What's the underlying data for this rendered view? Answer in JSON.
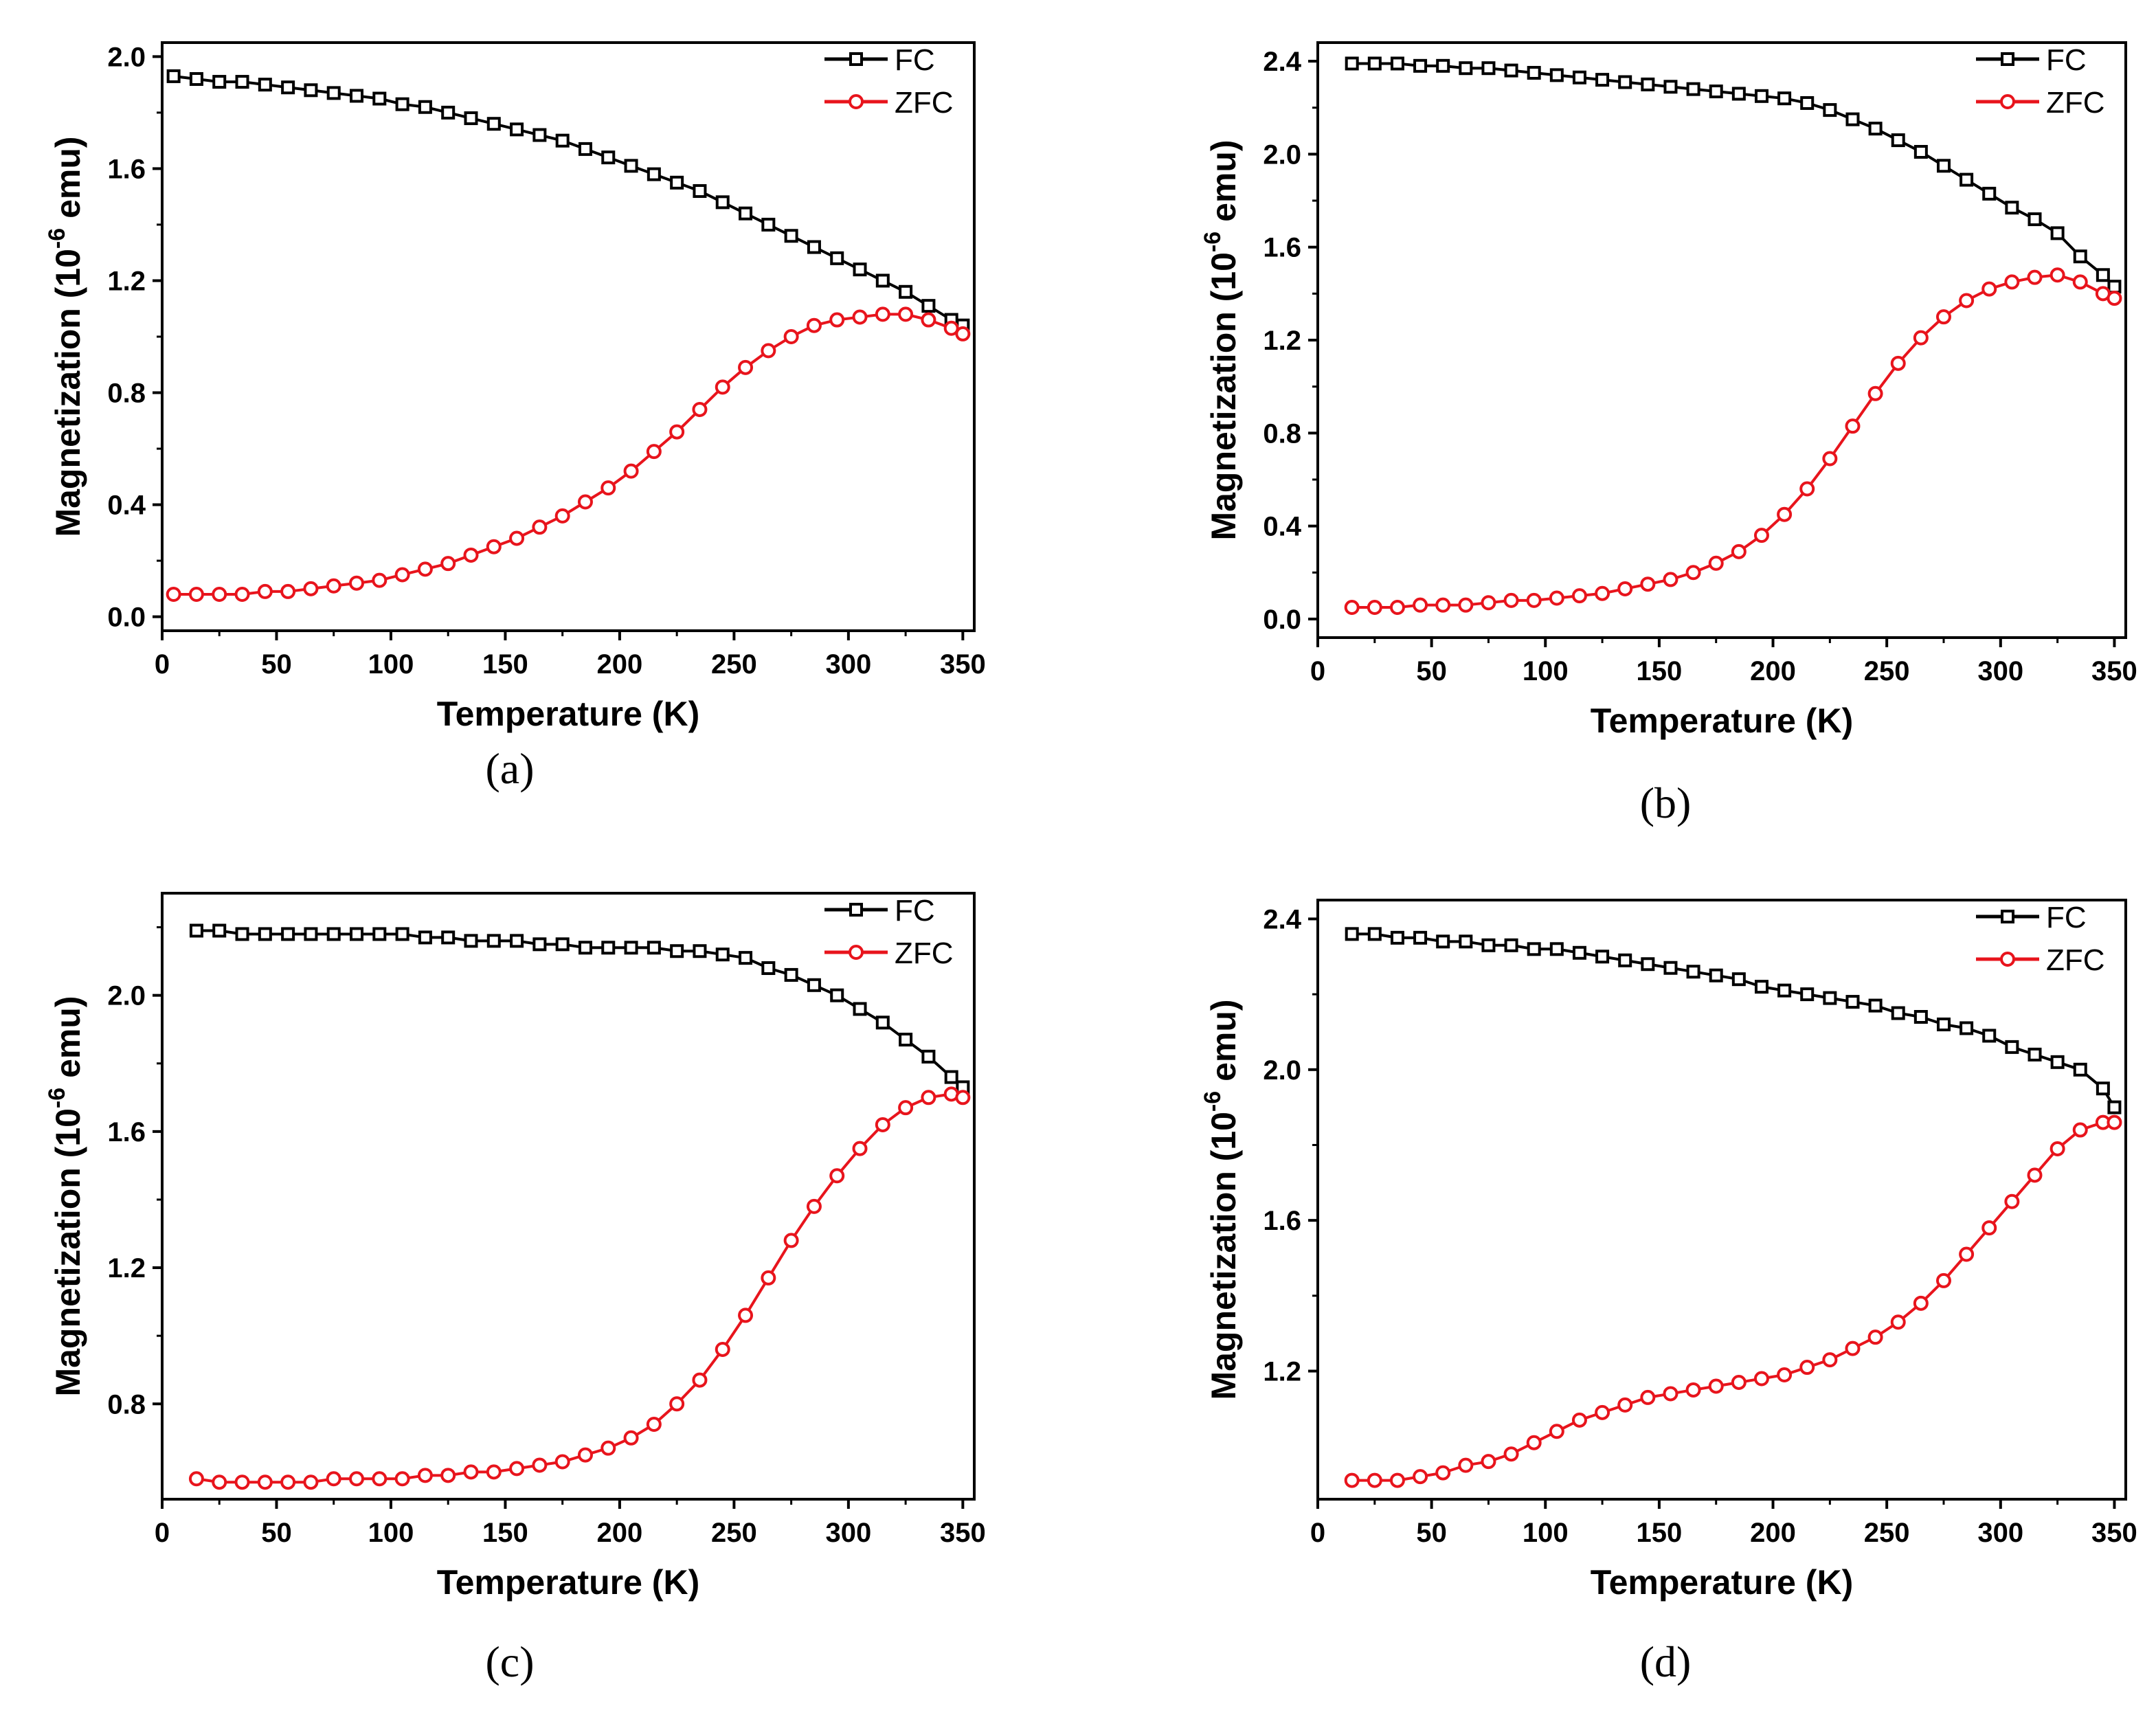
{
  "chart_data": [
    {
      "id": "a",
      "type": "scatter",
      "caption": "(a)",
      "xlabel": "Temperature (K)",
      "ylabel_main": "Magnetization (10",
      "ylabel_sup": "-6",
      "ylabel_tail": " emu)",
      "xlim": [
        0,
        355
      ],
      "ylim": [
        -0.05,
        2.05
      ],
      "xticks": [
        0,
        50,
        100,
        150,
        200,
        250,
        300,
        350
      ],
      "xtick_labels": [
        "0",
        "50",
        "100",
        "150",
        "200",
        "250",
        "300",
        "350"
      ],
      "yticks": [
        0.0,
        0.4,
        0.8,
        1.2,
        1.6,
        2.0
      ],
      "ytick_labels": [
        "0.0",
        "0.4",
        "0.8",
        "1.2",
        "1.6",
        "2.0"
      ],
      "legend_position": "top-right",
      "series": [
        {
          "name": "FC",
          "marker": "square",
          "color": "#000000",
          "x": [
            5,
            15,
            25,
            35,
            45,
            55,
            65,
            75,
            85,
            95,
            105,
            115,
            125,
            135,
            145,
            155,
            165,
            175,
            185,
            195,
            205,
            215,
            225,
            235,
            245,
            255,
            265,
            275,
            285,
            295,
            305,
            315,
            325,
            335,
            345,
            350
          ],
          "y": [
            1.93,
            1.92,
            1.91,
            1.91,
            1.9,
            1.89,
            1.88,
            1.87,
            1.86,
            1.85,
            1.83,
            1.82,
            1.8,
            1.78,
            1.76,
            1.74,
            1.72,
            1.7,
            1.67,
            1.64,
            1.61,
            1.58,
            1.55,
            1.52,
            1.48,
            1.44,
            1.4,
            1.36,
            1.32,
            1.28,
            1.24,
            1.2,
            1.16,
            1.11,
            1.06,
            1.04
          ]
        },
        {
          "name": "ZFC",
          "marker": "circle",
          "color": "#e8141c",
          "x": [
            5,
            15,
            25,
            35,
            45,
            55,
            65,
            75,
            85,
            95,
            105,
            115,
            125,
            135,
            145,
            155,
            165,
            175,
            185,
            195,
            205,
            215,
            225,
            235,
            245,
            255,
            265,
            275,
            285,
            295,
            305,
            315,
            325,
            335,
            345,
            350
          ],
          "y": [
            0.08,
            0.08,
            0.08,
            0.08,
            0.09,
            0.09,
            0.1,
            0.11,
            0.12,
            0.13,
            0.15,
            0.17,
            0.19,
            0.22,
            0.25,
            0.28,
            0.32,
            0.36,
            0.41,
            0.46,
            0.52,
            0.59,
            0.66,
            0.74,
            0.82,
            0.89,
            0.95,
            1.0,
            1.04,
            1.06,
            1.07,
            1.08,
            1.08,
            1.06,
            1.03,
            1.01
          ]
        }
      ]
    },
    {
      "id": "b",
      "type": "scatter",
      "caption": "(b)",
      "xlabel": "Temperature (K)",
      "ylabel_main": "Magnetization (10",
      "ylabel_sup": "-6",
      "ylabel_tail": " emu)",
      "xlim": [
        0,
        355
      ],
      "ylim": [
        -0.08,
        2.48
      ],
      "xticks": [
        0,
        50,
        100,
        150,
        200,
        250,
        300,
        350
      ],
      "xtick_labels": [
        "0",
        "50",
        "100",
        "150",
        "200",
        "250",
        "300",
        "350"
      ],
      "yticks": [
        0.0,
        0.4,
        0.8,
        1.2,
        1.6,
        2.0,
        2.4
      ],
      "ytick_labels": [
        "0.0",
        "0.4",
        "0.8",
        "1.2",
        "1.6",
        "2.0",
        "2.4"
      ],
      "legend_position": "top-right",
      "series": [
        {
          "name": "FC",
          "marker": "square",
          "color": "#000000",
          "x": [
            15,
            25,
            35,
            45,
            55,
            65,
            75,
            85,
            95,
            105,
            115,
            125,
            135,
            145,
            155,
            165,
            175,
            185,
            195,
            205,
            215,
            225,
            235,
            245,
            255,
            265,
            275,
            285,
            295,
            305,
            315,
            325,
            335,
            345,
            350
          ],
          "y": [
            2.39,
            2.39,
            2.39,
            2.38,
            2.38,
            2.37,
            2.37,
            2.36,
            2.35,
            2.34,
            2.33,
            2.32,
            2.31,
            2.3,
            2.29,
            2.28,
            2.27,
            2.26,
            2.25,
            2.24,
            2.22,
            2.19,
            2.15,
            2.11,
            2.06,
            2.01,
            1.95,
            1.89,
            1.83,
            1.77,
            1.72,
            1.66,
            1.56,
            1.48,
            1.43
          ]
        },
        {
          "name": "ZFC",
          "marker": "circle",
          "color": "#e8141c",
          "x": [
            15,
            25,
            35,
            45,
            55,
            65,
            75,
            85,
            95,
            105,
            115,
            125,
            135,
            145,
            155,
            165,
            175,
            185,
            195,
            205,
            215,
            225,
            235,
            245,
            255,
            265,
            275,
            285,
            295,
            305,
            315,
            325,
            335,
            345,
            350
          ],
          "y": [
            0.05,
            0.05,
            0.05,
            0.06,
            0.06,
            0.06,
            0.07,
            0.08,
            0.08,
            0.09,
            0.1,
            0.11,
            0.13,
            0.15,
            0.17,
            0.2,
            0.24,
            0.29,
            0.36,
            0.45,
            0.56,
            0.69,
            0.83,
            0.97,
            1.1,
            1.21,
            1.3,
            1.37,
            1.42,
            1.45,
            1.47,
            1.48,
            1.45,
            1.4,
            1.38
          ]
        }
      ]
    },
    {
      "id": "c",
      "type": "scatter",
      "caption": "(c)",
      "xlabel": "Temperature (K)",
      "ylabel_main": "Magnetization (10",
      "ylabel_sup": "-6",
      "ylabel_tail": " emu)",
      "xlim": [
        0,
        355
      ],
      "ylim": [
        0.52,
        2.3
      ],
      "xticks": [
        0,
        50,
        100,
        150,
        200,
        250,
        300,
        350
      ],
      "xtick_labels": [
        "0",
        "50",
        "100",
        "150",
        "200",
        "250",
        "300",
        "350"
      ],
      "yticks": [
        0.8,
        1.2,
        1.6,
        2.0
      ],
      "ytick_labels": [
        "0.8",
        "1.2",
        "1.6",
        "2.0"
      ],
      "legend_position": "top-right",
      "series": [
        {
          "name": "FC",
          "marker": "square",
          "color": "#000000",
          "x": [
            15,
            25,
            35,
            45,
            55,
            65,
            75,
            85,
            95,
            105,
            115,
            125,
            135,
            145,
            155,
            165,
            175,
            185,
            195,
            205,
            215,
            225,
            235,
            245,
            255,
            265,
            275,
            285,
            295,
            305,
            315,
            325,
            335,
            345,
            350
          ],
          "y": [
            2.19,
            2.19,
            2.18,
            2.18,
            2.18,
            2.18,
            2.18,
            2.18,
            2.18,
            2.18,
            2.17,
            2.17,
            2.16,
            2.16,
            2.16,
            2.15,
            2.15,
            2.14,
            2.14,
            2.14,
            2.14,
            2.13,
            2.13,
            2.12,
            2.11,
            2.08,
            2.06,
            2.03,
            2.0,
            1.96,
            1.92,
            1.87,
            1.82,
            1.76,
            1.73
          ]
        },
        {
          "name": "ZFC",
          "marker": "circle",
          "color": "#e8141c",
          "x": [
            15,
            25,
            35,
            45,
            55,
            65,
            75,
            85,
            95,
            105,
            115,
            125,
            135,
            145,
            155,
            165,
            175,
            185,
            195,
            205,
            215,
            225,
            235,
            245,
            255,
            265,
            275,
            285,
            295,
            305,
            315,
            325,
            335,
            345,
            350
          ],
          "y": [
            0.58,
            0.57,
            0.57,
            0.57,
            0.57,
            0.57,
            0.58,
            0.58,
            0.58,
            0.58,
            0.59,
            0.59,
            0.6,
            0.6,
            0.61,
            0.62,
            0.63,
            0.65,
            0.67,
            0.7,
            0.74,
            0.8,
            0.87,
            0.96,
            1.06,
            1.17,
            1.28,
            1.38,
            1.47,
            1.55,
            1.62,
            1.67,
            1.7,
            1.71,
            1.7
          ]
        }
      ]
    },
    {
      "id": "d",
      "type": "scatter",
      "caption": "(d)",
      "xlabel": "Temperature (K)",
      "ylabel_main": "Magnetization (10",
      "ylabel_sup": "-6",
      "ylabel_tail": " emu)",
      "xlim": [
        0,
        355
      ],
      "ylim": [
        0.86,
        2.45
      ],
      "xticks": [
        0,
        50,
        100,
        150,
        200,
        250,
        300,
        350
      ],
      "xtick_labels": [
        "0",
        "50",
        "100",
        "150",
        "200",
        "250",
        "300",
        "350"
      ],
      "yticks": [
        1.2,
        1.6,
        2.0,
        2.4
      ],
      "ytick_labels": [
        "1.2",
        "1.6",
        "2.0",
        "2.4"
      ],
      "legend_position": "top-right",
      "series": [
        {
          "name": "FC",
          "marker": "square",
          "color": "#000000",
          "x": [
            15,
            25,
            35,
            45,
            55,
            65,
            75,
            85,
            95,
            105,
            115,
            125,
            135,
            145,
            155,
            165,
            175,
            185,
            195,
            205,
            215,
            225,
            235,
            245,
            255,
            265,
            275,
            285,
            295,
            305,
            315,
            325,
            335,
            345,
            350
          ],
          "y": [
            2.36,
            2.36,
            2.35,
            2.35,
            2.34,
            2.34,
            2.33,
            2.33,
            2.32,
            2.32,
            2.31,
            2.3,
            2.29,
            2.28,
            2.27,
            2.26,
            2.25,
            2.24,
            2.22,
            2.21,
            2.2,
            2.19,
            2.18,
            2.17,
            2.15,
            2.14,
            2.12,
            2.11,
            2.09,
            2.06,
            2.04,
            2.02,
            2.0,
            1.95,
            1.9
          ]
        },
        {
          "name": "ZFC",
          "marker": "circle",
          "color": "#e8141c",
          "x": [
            15,
            25,
            35,
            45,
            55,
            65,
            75,
            85,
            95,
            105,
            115,
            125,
            135,
            145,
            155,
            165,
            175,
            185,
            195,
            205,
            215,
            225,
            235,
            245,
            255,
            265,
            275,
            285,
            295,
            305,
            315,
            325,
            335,
            345,
            350
          ],
          "y": [
            0.91,
            0.91,
            0.91,
            0.92,
            0.93,
            0.95,
            0.96,
            0.98,
            1.01,
            1.04,
            1.07,
            1.09,
            1.11,
            1.13,
            1.14,
            1.15,
            1.16,
            1.17,
            1.18,
            1.19,
            1.21,
            1.23,
            1.26,
            1.29,
            1.33,
            1.38,
            1.44,
            1.51,
            1.58,
            1.65,
            1.72,
            1.79,
            1.84,
            1.86,
            1.86
          ]
        }
      ]
    }
  ]
}
